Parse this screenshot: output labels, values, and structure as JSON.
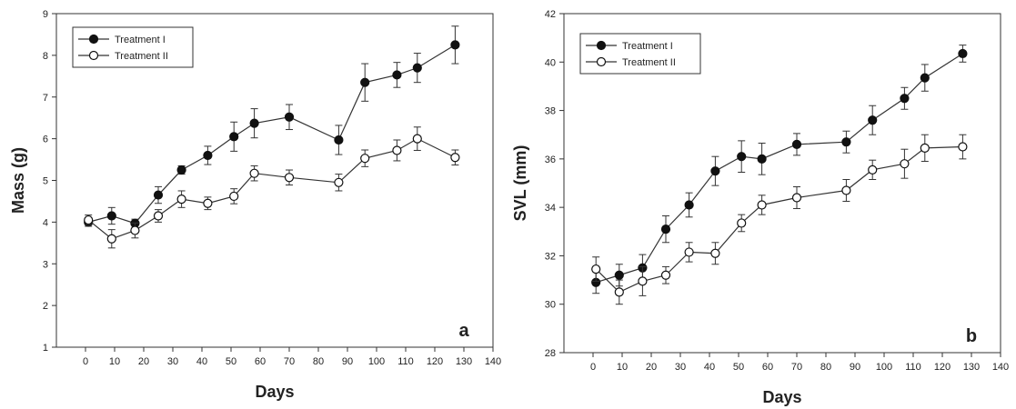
{
  "chart_data": [
    {
      "type": "line",
      "panel_label": "a",
      "xlabel": "Days",
      "ylabel": "Mass (g)",
      "xlim": [
        -10,
        140
      ],
      "ylim": [
        1,
        9
      ],
      "xticks": [
        0,
        10,
        20,
        30,
        40,
        50,
        60,
        70,
        80,
        90,
        100,
        110,
        120,
        130,
        140
      ],
      "yticks": [
        1,
        2,
        3,
        4,
        5,
        6,
        7,
        8,
        9
      ],
      "legend_position": "top-left",
      "series": [
        {
          "name": "Treatment I",
          "marker": "filled-circle",
          "x": [
            1,
            9,
            17,
            25,
            33,
            42,
            51,
            58,
            70,
            87,
            96,
            107,
            114,
            127
          ],
          "y": [
            4.0,
            4.15,
            3.97,
            4.65,
            5.25,
            5.6,
            6.05,
            6.37,
            6.52,
            5.97,
            7.35,
            7.53,
            7.7,
            8.25
          ],
          "err": [
            0.1,
            0.2,
            0.1,
            0.2,
            0.1,
            0.22,
            0.35,
            0.35,
            0.3,
            0.35,
            0.45,
            0.3,
            0.35,
            0.45
          ]
        },
        {
          "name": "Treatment II",
          "marker": "open-circle",
          "x": [
            1,
            9,
            17,
            25,
            33,
            42,
            51,
            58,
            70,
            87,
            96,
            107,
            114,
            127
          ],
          "y": [
            4.05,
            3.6,
            3.8,
            4.15,
            4.55,
            4.45,
            4.62,
            5.17,
            5.07,
            4.95,
            5.53,
            5.72,
            6.0,
            5.55
          ],
          "err": [
            0.12,
            0.22,
            0.18,
            0.15,
            0.2,
            0.15,
            0.18,
            0.18,
            0.18,
            0.2,
            0.2,
            0.25,
            0.28,
            0.18
          ]
        }
      ]
    },
    {
      "type": "line",
      "panel_label": "b",
      "xlabel": "Days",
      "ylabel": "SVL (mm)",
      "xlim": [
        -10,
        140
      ],
      "ylim": [
        28,
        42
      ],
      "xticks": [
        0,
        10,
        20,
        30,
        40,
        50,
        60,
        70,
        80,
        90,
        100,
        110,
        120,
        130,
        140
      ],
      "yticks": [
        28,
        30,
        32,
        34,
        36,
        38,
        40,
        42
      ],
      "legend_position": "top-left",
      "series": [
        {
          "name": "Treatment I",
          "marker": "filled-circle",
          "x": [
            1,
            9,
            17,
            25,
            33,
            42,
            51,
            58,
            70,
            87,
            96,
            107,
            114,
            127
          ],
          "y": [
            30.9,
            31.2,
            31.5,
            33.1,
            34.1,
            35.5,
            36.1,
            36.0,
            36.6,
            36.7,
            37.6,
            38.5,
            39.35,
            40.35
          ],
          "err": [
            0.45,
            0.45,
            0.55,
            0.55,
            0.5,
            0.6,
            0.65,
            0.65,
            0.45,
            0.45,
            0.6,
            0.45,
            0.55,
            0.35
          ]
        },
        {
          "name": "Treatment II",
          "marker": "open-circle",
          "x": [
            1,
            9,
            17,
            25,
            33,
            42,
            51,
            58,
            70,
            87,
            96,
            107,
            114,
            127
          ],
          "y": [
            31.45,
            30.5,
            30.95,
            31.2,
            32.15,
            32.1,
            33.35,
            34.1,
            34.4,
            34.7,
            35.55,
            35.8,
            36.45,
            36.5
          ],
          "err": [
            0.5,
            0.5,
            0.6,
            0.35,
            0.4,
            0.45,
            0.35,
            0.4,
            0.45,
            0.45,
            0.4,
            0.6,
            0.55,
            0.5
          ]
        }
      ]
    }
  ]
}
